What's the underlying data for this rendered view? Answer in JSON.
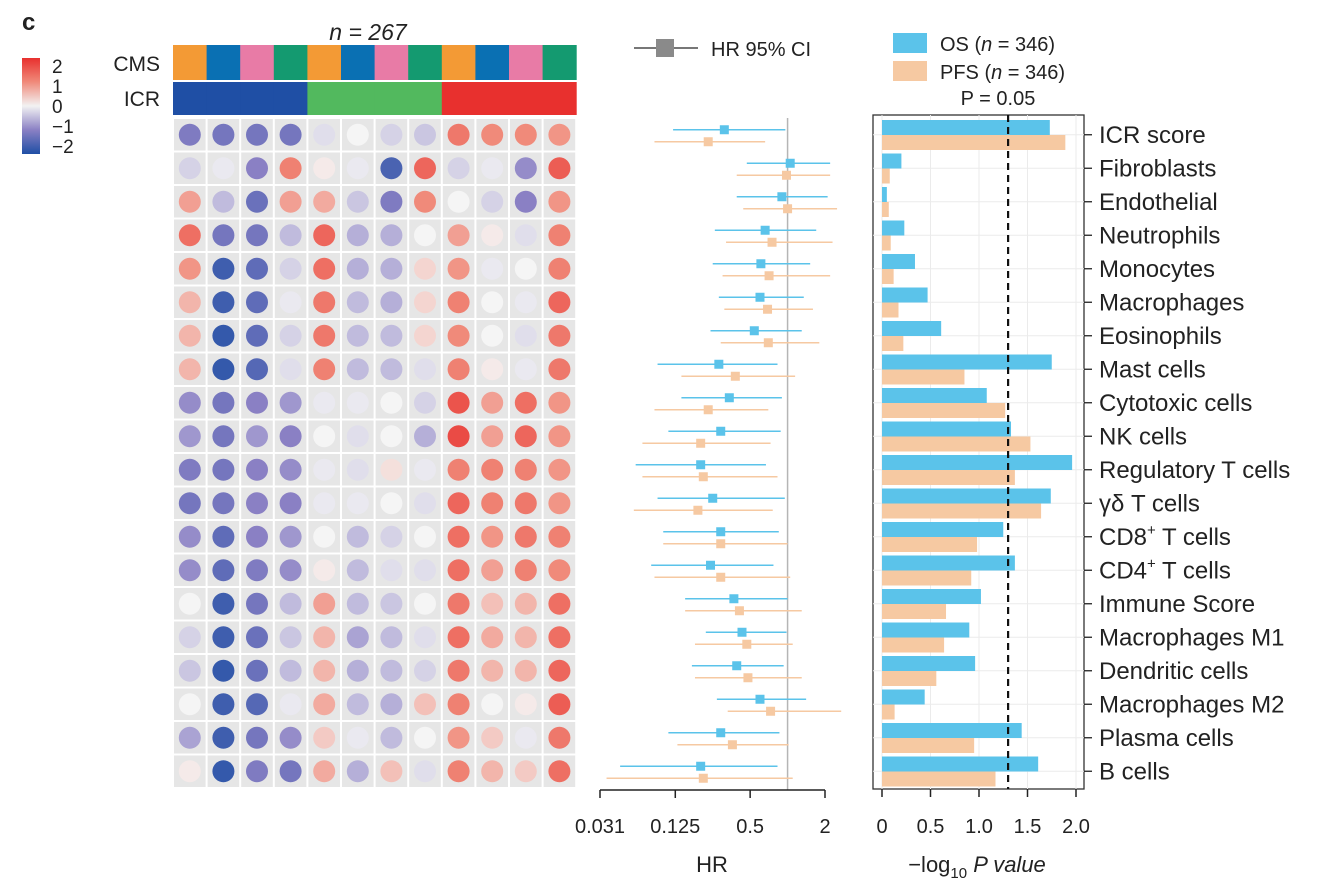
{
  "chart_data": {
    "type": "composite",
    "panel_letter": "c",
    "sample_label": "n = 267",
    "rows": [
      "ICR score",
      "Fibroblasts",
      "Endothelial",
      "Neutrophils",
      "Monocytes",
      "Macrophages",
      "Eosinophils",
      "Mast cells",
      "Cytotoxic cells",
      "NK cells",
      "Regulatory T cells",
      "γδ T cells",
      "CD8⁺ T cells",
      "CD4⁺ T cells",
      "Immune Score",
      "Macrophages M1",
      "Dendritic cells",
      "Macrophages M2",
      "Plasma cells",
      "B cells"
    ],
    "heatmap": {
      "type": "heatmap",
      "annotation_labels": [
        "CMS",
        "ICR"
      ],
      "cms_groups": [
        "CMS1",
        "CMS2",
        "CMS3",
        "CMS4",
        "CMS1",
        "CMS2",
        "CMS3",
        "CMS4",
        "CMS1",
        "CMS2",
        "CMS3",
        "CMS4"
      ],
      "icr_groups": [
        "ICR Low",
        "ICR Low",
        "ICR Low",
        "ICR Low",
        "ICR Medium",
        "ICR Medium",
        "ICR Medium",
        "ICR Medium",
        "ICR High",
        "ICR High",
        "ICR High",
        "ICR High"
      ],
      "annotation_colors": {
        "CMS1": "#f39a35",
        "CMS2": "#0a70b3",
        "CMS3": "#e87ba6",
        "CMS4": "#149a70",
        "ICR Low": "#1f4fa5",
        "ICR Medium": "#52b95e",
        "ICR High": "#e8302e"
      },
      "legend_ticks": [
        "2",
        "1",
        "0",
        "−1",
        "−2"
      ],
      "legend_range": [
        -2,
        2
      ],
      "values": [
        [
          -1.1,
          -1.2,
          -1.2,
          -1.2,
          -0.2,
          0.0,
          -0.3,
          -0.4,
          1.2,
          1.0,
          1.0,
          0.9
        ],
        [
          -0.3,
          -0.1,
          -1.0,
          1.1,
          0.1,
          -0.1,
          -1.6,
          1.4,
          -0.3,
          -0.1,
          -0.9,
          1.5
        ],
        [
          0.8,
          -0.5,
          -1.3,
          0.8,
          0.7,
          -0.4,
          -1.1,
          1.0,
          0.0,
          -0.3,
          -1.0,
          0.9
        ],
        [
          1.3,
          -1.2,
          -1.2,
          -0.5,
          1.4,
          -0.6,
          -0.6,
          0.0,
          0.8,
          0.1,
          -0.2,
          1.1
        ],
        [
          0.9,
          -1.7,
          -1.4,
          -0.3,
          1.3,
          -0.6,
          -0.6,
          0.3,
          0.9,
          -0.1,
          0.0,
          1.1
        ],
        [
          0.6,
          -1.7,
          -1.4,
          -0.1,
          1.2,
          -0.5,
          -0.6,
          0.3,
          1.1,
          0.0,
          -0.1,
          1.4
        ],
        [
          0.6,
          -1.8,
          -1.4,
          -0.3,
          1.2,
          -0.5,
          -0.5,
          0.3,
          1.0,
          0.0,
          -0.2,
          1.2
        ],
        [
          0.6,
          -1.8,
          -1.5,
          -0.2,
          1.1,
          -0.5,
          -0.5,
          -0.2,
          1.1,
          0.1,
          -0.1,
          1.2
        ],
        [
          -0.9,
          -1.2,
          -1.0,
          -0.8,
          -0.1,
          -0.1,
          0.0,
          -0.3,
          1.6,
          0.8,
          1.3,
          0.9
        ],
        [
          -0.8,
          -1.2,
          -0.8,
          -1.0,
          0.0,
          -0.2,
          0.0,
          -0.6,
          1.7,
          0.8,
          1.4,
          0.9
        ],
        [
          -1.1,
          -1.2,
          -1.0,
          -0.9,
          -0.1,
          -0.2,
          0.2,
          -0.1,
          1.1,
          1.1,
          1.1,
          0.9
        ],
        [
          -1.2,
          -1.2,
          -1.0,
          -1.0,
          -0.1,
          -0.1,
          0.0,
          -0.2,
          1.4,
          1.1,
          1.2,
          0.9
        ],
        [
          -0.9,
          -1.4,
          -1.0,
          -0.8,
          0.0,
          -0.5,
          -0.3,
          0.0,
          1.3,
          0.9,
          1.2,
          1.1
        ],
        [
          -0.9,
          -1.4,
          -1.1,
          -0.9,
          0.1,
          -0.5,
          -0.2,
          -0.2,
          1.3,
          0.8,
          1.1,
          1.0
        ],
        [
          0.0,
          -1.7,
          -1.2,
          -0.5,
          0.8,
          -0.5,
          -0.4,
          0.0,
          1.2,
          0.5,
          0.6,
          1.3
        ],
        [
          -0.3,
          -1.7,
          -1.3,
          -0.4,
          0.6,
          -0.7,
          -0.5,
          -0.2,
          1.3,
          0.7,
          0.6,
          1.3
        ],
        [
          -0.4,
          -1.8,
          -1.3,
          -0.5,
          0.6,
          -0.6,
          -0.5,
          -0.3,
          1.2,
          0.6,
          0.6,
          1.4
        ],
        [
          0.0,
          -1.7,
          -1.5,
          -0.1,
          0.7,
          -0.5,
          -0.6,
          0.5,
          1.1,
          0.0,
          0.1,
          1.5
        ],
        [
          -0.7,
          -1.7,
          -1.2,
          -0.9,
          0.4,
          -0.1,
          -0.5,
          0.0,
          0.9,
          0.4,
          -0.1,
          1.2
        ],
        [
          0.1,
          -1.8,
          -1.1,
          -1.2,
          0.7,
          -0.6,
          0.5,
          -0.2,
          1.1,
          0.6,
          0.4,
          1.3
        ]
      ]
    },
    "forest": {
      "type": "scatter",
      "legend": "HR 95% CI",
      "xlabel": "HR",
      "x_scale": "log2",
      "xlim": [
        0.031,
        2.3
      ],
      "xticks": [
        0.031,
        0.125,
        0.5,
        2
      ],
      "xtick_labels": [
        "0.031",
        "0.125",
        "0.5",
        "2"
      ],
      "reference_line": 1,
      "series": [
        {
          "name": "OS",
          "color": "#5bc3ea",
          "hr": [
            0.31,
            1.05,
            0.9,
            0.66,
            0.61,
            0.6,
            0.54,
            0.28,
            0.34,
            0.29,
            0.2,
            0.25,
            0.29,
            0.24,
            0.37,
            0.43,
            0.39,
            0.6,
            0.29,
            0.2
          ],
          "lo": [
            0.12,
            0.47,
            0.39,
            0.26,
            0.25,
            0.28,
            0.24,
            0.09,
            0.14,
            0.11,
            0.06,
            0.09,
            0.1,
            0.08,
            0.15,
            0.22,
            0.17,
            0.27,
            0.11,
            0.045
          ],
          "hi": [
            0.96,
            2.2,
            2.1,
            1.7,
            1.52,
            1.35,
            1.3,
            0.83,
            0.9,
            0.88,
            0.67,
            0.95,
            0.85,
            0.77,
            1.0,
            0.98,
            0.93,
            1.41,
            0.86,
            0.83
          ]
        },
        {
          "name": "PFS",
          "color": "#f6c9a2",
          "hr": [
            0.23,
            0.98,
            1.0,
            0.75,
            0.71,
            0.69,
            0.7,
            0.38,
            0.23,
            0.2,
            0.21,
            0.19,
            0.29,
            0.29,
            0.41,
            0.47,
            0.48,
            0.73,
            0.36,
            0.21
          ],
          "lo": [
            0.085,
            0.39,
            0.44,
            0.32,
            0.3,
            0.31,
            0.29,
            0.14,
            0.085,
            0.068,
            0.068,
            0.058,
            0.1,
            0.085,
            0.15,
            0.18,
            0.18,
            0.33,
            0.13,
            0.035
          ],
          "hi": [
            0.66,
            2.2,
            2.5,
            2.3,
            2.2,
            1.6,
            1.8,
            1.15,
            0.7,
            0.73,
            0.83,
            0.76,
            1.0,
            1.05,
            1.3,
            1.1,
            1.3,
            2.7,
            1.02,
            1.1
          ]
        }
      ]
    },
    "bars": {
      "type": "bar",
      "xlabel": "−log",
      "xlabel_sub": "10",
      "xlabel_suffix": " P value",
      "xlim": [
        0,
        2.0
      ],
      "xticks": [
        0,
        0.5,
        1.0,
        1.5,
        2.0
      ],
      "xtick_labels": [
        "0",
        "0.5",
        "1.0",
        "1.5",
        "2.0"
      ],
      "threshold": 1.3,
      "threshold_label": "P = 0.05",
      "series": [
        {
          "name": "OS",
          "legend_prefix": "OS (",
          "legend_n": "n",
          "legend_suffix": " = 346)",
          "color": "#5bc3ea",
          "values": [
            1.73,
            0.2,
            0.05,
            0.23,
            0.34,
            0.47,
            0.61,
            1.75,
            1.08,
            1.33,
            1.96,
            1.74,
            1.25,
            1.37,
            1.02,
            0.9,
            0.96,
            0.44,
            1.44,
            1.61
          ]
        },
        {
          "name": "PFS",
          "legend_prefix": "PFS (",
          "legend_n": "n",
          "legend_suffix": " = 346)",
          "color": "#f6c9a2",
          "values": [
            1.89,
            0.08,
            0.07,
            0.09,
            0.12,
            0.17,
            0.22,
            0.85,
            1.27,
            1.53,
            1.37,
            1.64,
            0.98,
            0.92,
            0.66,
            0.64,
            0.56,
            0.13,
            0.95,
            1.17
          ]
        }
      ]
    }
  }
}
